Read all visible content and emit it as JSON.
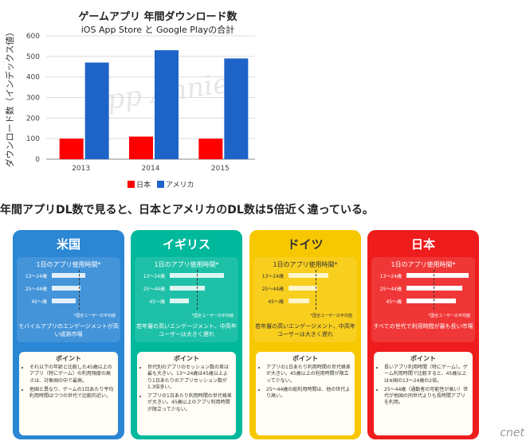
{
  "chart_data": {
    "type": "bar",
    "title": "ゲームアプリ 年間ダウンロード数",
    "subtitle": "iOS App Store と Google Playの合計",
    "ylabel": "ダウンロード数（インデックス値）",
    "xlabel": "",
    "categories": [
      "2013",
      "2014",
      "2015"
    ],
    "series": [
      {
        "name": "日本",
        "values": [
          100,
          110,
          100
        ],
        "color": "#ff0000"
      },
      {
        "name": "アメリカ",
        "values": [
          470,
          530,
          490
        ],
        "color": "#1e64c8"
      }
    ],
    "ylim": [
      0,
      600
    ],
    "yticks": [
      0,
      100,
      200,
      300,
      400,
      500,
      600
    ],
    "grid": true,
    "legend_position": "bottom",
    "watermark": "App Annie"
  },
  "caption": "年間アプリDL数で見ると、日本とアメリカのDL数は5倍近く違っている。",
  "panels": [
    {
      "country": "米国",
      "color": "#2b86d4",
      "usage_title": "1日のアプリ使用時間*",
      "rows": [
        {
          "label": "13～24歳",
          "value": 0.52
        },
        {
          "label": "25～44歳",
          "value": 0.45
        },
        {
          "label": "45～歳",
          "value": 0.38
        }
      ],
      "avg_note": "*国全ユーザーの平均値",
      "summary": "モバイルアプリのエンゲージメントが高い成熟市場",
      "point_title": "ポイント",
      "points": [
        "それ以下の年齢と比較した45歳以上のアプリ（特にゲーム）の利用頻度の高さは、対象国の中で最高。",
        "他国と異なり、ゲームの1日あたり平均利用時間はつつの世代で比較的近い。"
      ]
    },
    {
      "country": "イギリス",
      "color": "#00b89c",
      "usage_title": "1日のアプリ使用時間*",
      "rows": [
        {
          "label": "13～24歳",
          "value": 0.85
        },
        {
          "label": "25～44歳",
          "value": 0.55
        },
        {
          "label": "45～歳",
          "value": 0.3
        }
      ],
      "avg_note": "*国全ユーザーの平均値",
      "summary": "若年層の高いエンゲージメント、中高年ユーザーは大きく遅れ",
      "point_title": "ポイント",
      "points": [
        "世代別のアプリのセッション数の差は最も大きい。13～24歳は45歳以上より1日あたりのアプリセッション数が1.3倍多い。",
        "アプリの1日あたり利用時間の世代格差が大きい。45歳以上のアプリ利用時間が限立って少ない。"
      ]
    },
    {
      "country": "ドイツ",
      "color": "#f7c800",
      "usage_title": "1日のアプリ使用時間*",
      "rows": [
        {
          "label": "13～24歳",
          "value": 0.62
        },
        {
          "label": "25～44歳",
          "value": 0.45
        },
        {
          "label": "45～歳",
          "value": 0.33
        }
      ],
      "avg_note": "*国全ユーザーの平均値",
      "summary": "若年層の高いエンゲージメント、中高年ユーザーは大きく遅れ",
      "point_title": "ポイント",
      "points": [
        "アプリの1日あたり利用時間の世代格差が大きい。45歳以上の利用時間が限立って少ない。",
        "25～44歳の総利用時間は、他の世代より高い。"
      ]
    },
    {
      "country": "日本",
      "color": "#ee1c1c",
      "usage_title": "1日のアプリ使用時間*",
      "rows": [
        {
          "label": "13～24歳",
          "value": 0.98
        },
        {
          "label": "25～44歳",
          "value": 0.88
        },
        {
          "label": "45～歳",
          "value": 0.78
        }
      ],
      "avg_note": "*国全ユーザーの平均値",
      "summary": "すべての世代で利用時間が最も長い市場",
      "point_title": "ポイント",
      "points": [
        "長いアプリ利用時間（特にゲーム）。ゲーム利用時間で比較すると、45歳以上は※国の13～24歳の2倍。",
        "25～44歳（通勤者の可能性が高い）世代が他国の同世代よりも長時間アプリを利用。"
      ]
    }
  ],
  "watermark_logo": "cnet"
}
